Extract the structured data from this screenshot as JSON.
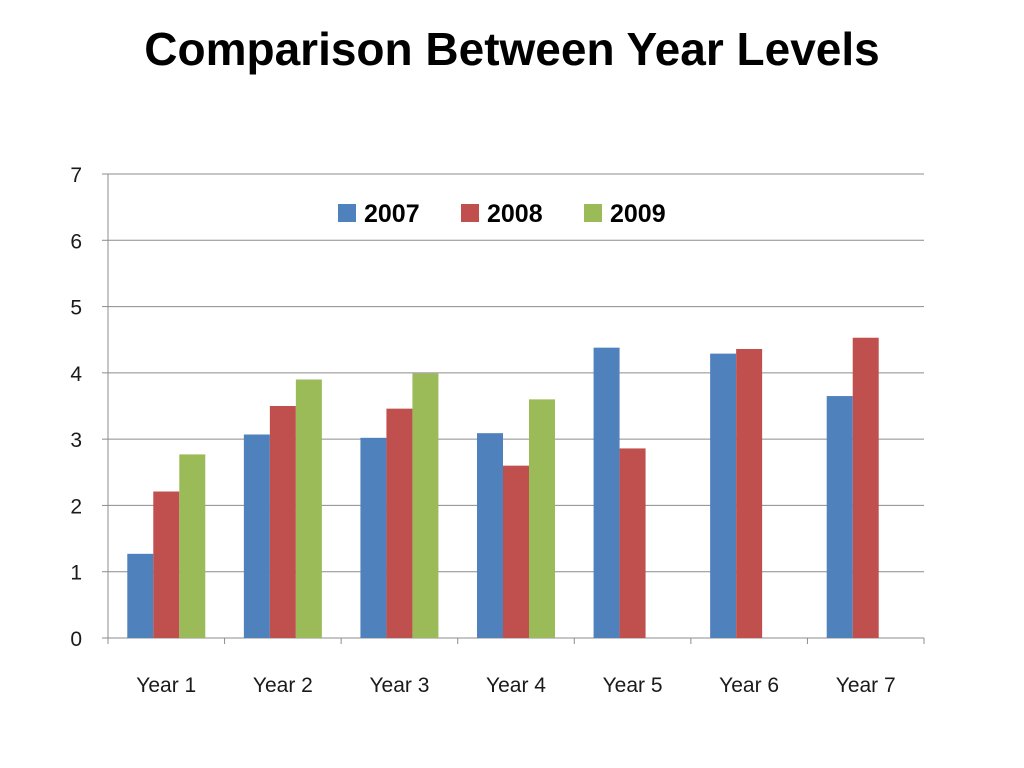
{
  "slide": {
    "title": "Comparison Between Year Levels"
  },
  "chart_data": {
    "type": "bar",
    "title": "",
    "xlabel": "",
    "ylabel": "",
    "categories": [
      "Year 1",
      "Year 2",
      "Year 3",
      "Year 4",
      "Year 5",
      "Year 6",
      "Year 7"
    ],
    "series": [
      {
        "name": "2007",
        "color": "#4F81BD",
        "values": [
          1.27,
          3.07,
          3.02,
          3.09,
          4.38,
          4.29,
          3.65
        ]
      },
      {
        "name": "2008",
        "color": "#C0504D",
        "values": [
          2.21,
          3.5,
          3.46,
          2.6,
          2.86,
          4.36,
          4.53
        ]
      },
      {
        "name": "2009",
        "color": "#9BBB59",
        "values": [
          2.77,
          3.9,
          3.99,
          3.6,
          null,
          null,
          null
        ]
      }
    ],
    "ylim": [
      0,
      7
    ],
    "yticks": [
      0,
      1,
      2,
      3,
      4,
      5,
      6,
      7
    ],
    "grid": true,
    "legend": "top-center"
  }
}
